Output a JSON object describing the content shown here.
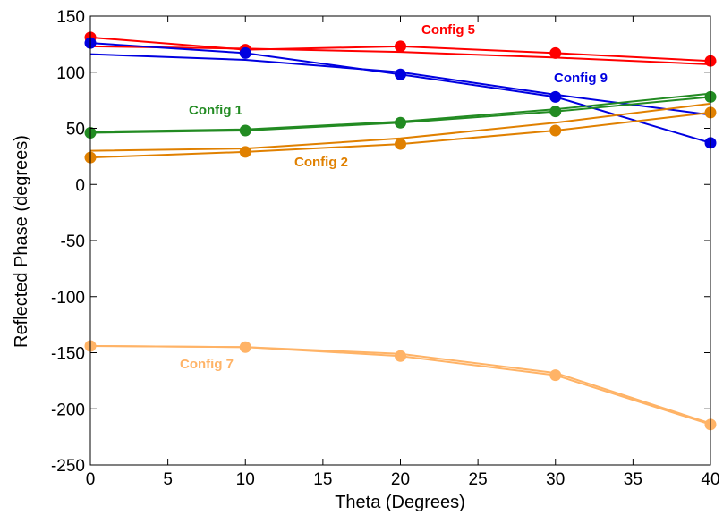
{
  "chart_data": {
    "type": "line",
    "xlabel": "Theta (Degrees)",
    "ylabel": "Reflected Phase (degrees)",
    "xlim": [
      0,
      40
    ],
    "ylim": [
      -250,
      150
    ],
    "xticks": [
      0,
      5,
      10,
      15,
      20,
      25,
      30,
      35,
      40
    ],
    "yticks": [
      -250,
      -200,
      -150,
      -100,
      -50,
      0,
      50,
      100,
      150
    ],
    "grid": false,
    "x": [
      0,
      10,
      20,
      30,
      40
    ],
    "series": [
      {
        "name": "Config 5",
        "color": "#ff0000",
        "marker_values": [
          131,
          120,
          123,
          117,
          110
        ],
        "line_values": [
          123,
          121,
          118,
          113,
          107
        ]
      },
      {
        "name": "Config 9",
        "color": "#0000e0",
        "marker_values": [
          126,
          117,
          98,
          78,
          37
        ],
        "line_values": [
          116,
          111,
          100,
          80,
          62
        ]
      },
      {
        "name": "Config 1",
        "color": "#228b22",
        "marker_values": [
          46,
          48,
          55,
          65,
          78
        ],
        "line_values": [
          47,
          49,
          56,
          67,
          81
        ]
      },
      {
        "name": "Config 2",
        "color": "#e08000",
        "marker_values": [
          24,
          29,
          36,
          48,
          64
        ],
        "line_values": [
          30,
          32,
          41,
          55,
          72
        ]
      },
      {
        "name": "Config 7",
        "color": "#ffb366",
        "marker_values": [
          -144,
          -145,
          -153,
          -170,
          -214
        ],
        "line_values": [
          -144,
          -145,
          -151,
          -168,
          -213
        ]
      }
    ]
  }
}
